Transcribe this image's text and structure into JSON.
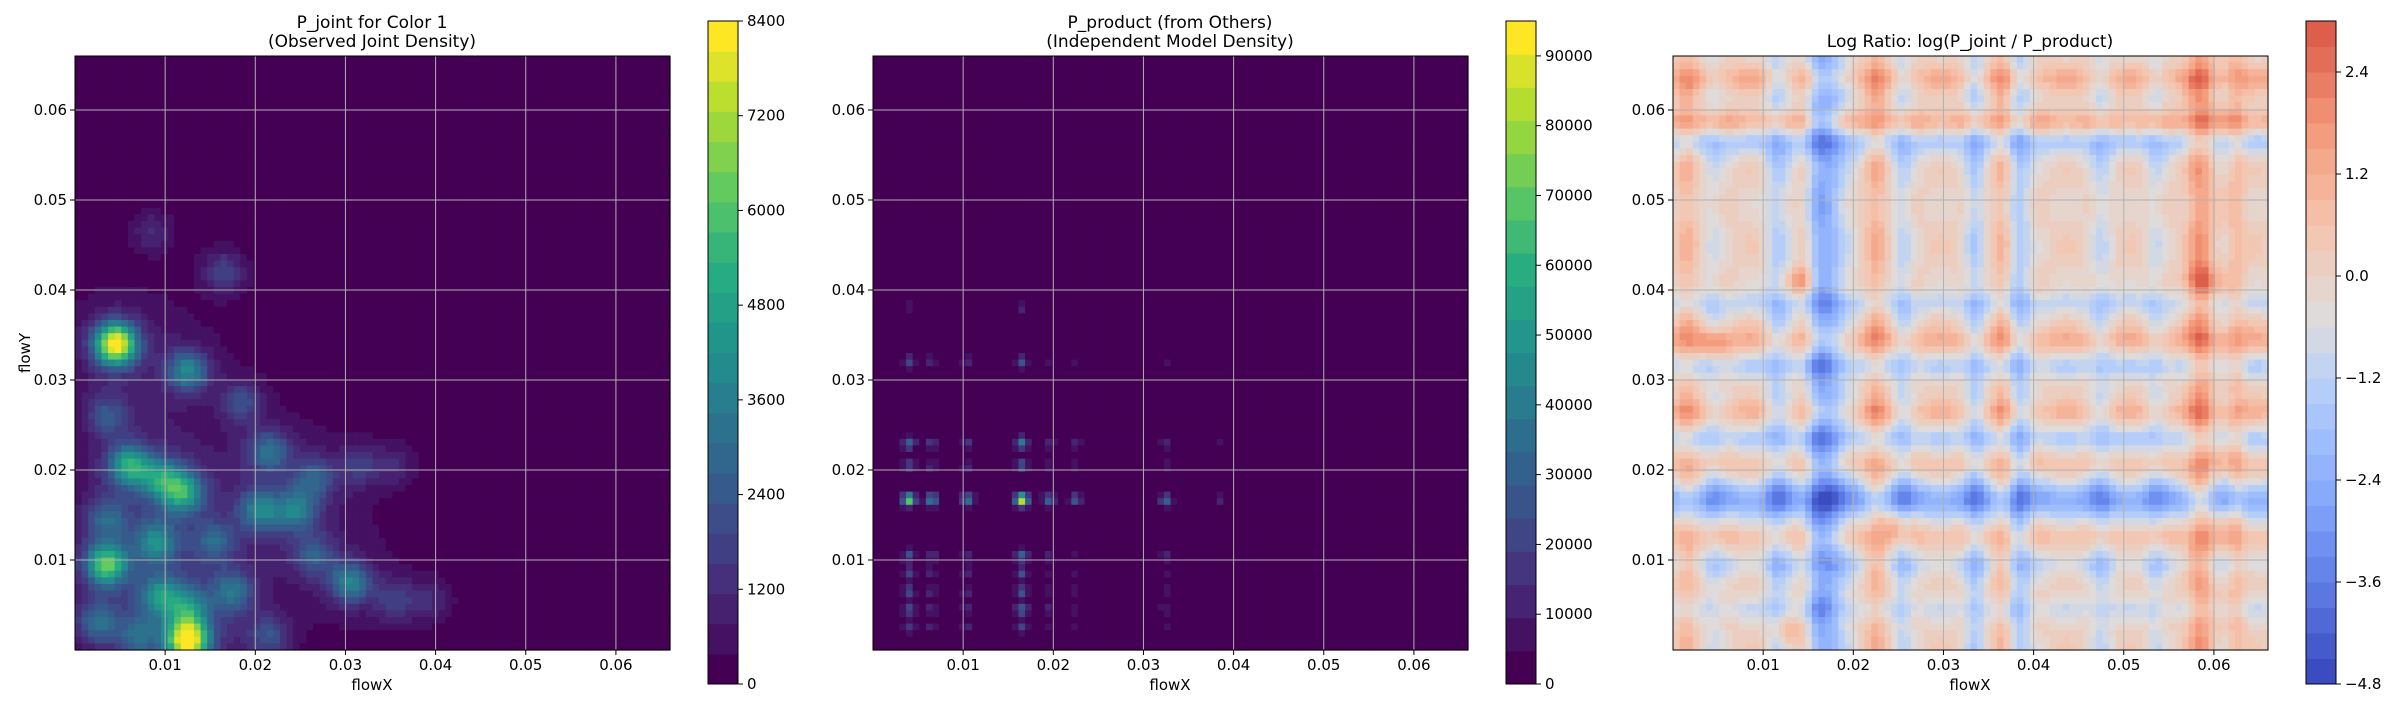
{
  "chart_data": [
    {
      "type": "heatmap",
      "title_line1": "P_joint for Color 1",
      "title_line2": "(Observed Joint Density)",
      "xlabel": "flowX",
      "ylabel": "flowY",
      "xlim": [
        0,
        0.066
      ],
      "ylim": [
        0,
        0.066
      ],
      "xticks": [
        "0.01",
        "0.02",
        "0.03",
        "0.04",
        "0.05",
        "0.06"
      ],
      "yticks": [
        "0.01",
        "0.02",
        "0.03",
        "0.04",
        "0.05",
        "0.06"
      ],
      "colormap": "viridis",
      "colorbar": {
        "min": 0,
        "max": 8400,
        "ticks": [
          "0",
          "1200",
          "2400",
          "3600",
          "4800",
          "6000",
          "7200",
          "8400"
        ]
      },
      "grid": true,
      "hotspots": [
        {
          "x": 0.0045,
          "y": 0.034,
          "value": 7800
        },
        {
          "x": 0.0125,
          "y": 0.001,
          "value": 7600
        },
        {
          "x": 0.0035,
          "y": 0.0095,
          "value": 5200
        },
        {
          "x": 0.006,
          "y": 0.0205,
          "value": 4200
        },
        {
          "x": 0.012,
          "y": 0.0175,
          "value": 4000
        },
        {
          "x": 0.0095,
          "y": 0.019,
          "value": 3200
        },
        {
          "x": 0.0125,
          "y": 0.031,
          "value": 3400
        },
        {
          "x": 0.009,
          "y": 0.012,
          "value": 3000
        },
        {
          "x": 0.0095,
          "y": 0.006,
          "value": 3000
        },
        {
          "x": 0.0205,
          "y": 0.0155,
          "value": 3000
        },
        {
          "x": 0.0245,
          "y": 0.0155,
          "value": 2800
        },
        {
          "x": 0.0125,
          "y": 0.0045,
          "value": 2800
        },
        {
          "x": 0.0215,
          "y": 0.022,
          "value": 2600
        },
        {
          "x": 0.0305,
          "y": 0.0075,
          "value": 3200
        },
        {
          "x": 0.0175,
          "y": 0.0065,
          "value": 2400
        },
        {
          "x": 0.0025,
          "y": 0.003,
          "value": 2400
        },
        {
          "x": 0.007,
          "y": 0.0015,
          "value": 2000
        },
        {
          "x": 0.0265,
          "y": 0.0105,
          "value": 2000
        },
        {
          "x": 0.0265,
          "y": 0.019,
          "value": 2000
        },
        {
          "x": 0.0165,
          "y": 0.042,
          "value": 1600
        },
        {
          "x": 0.0035,
          "y": 0.026,
          "value": 1800
        },
        {
          "x": 0.0185,
          "y": 0.0275,
          "value": 1700
        },
        {
          "x": 0.0035,
          "y": 0.0145,
          "value": 2000
        },
        {
          "x": 0.0155,
          "y": 0.012,
          "value": 2000
        },
        {
          "x": 0.0355,
          "y": 0.0055,
          "value": 1400
        },
        {
          "x": 0.0315,
          "y": 0.0205,
          "value": 1300
        },
        {
          "x": 0.0085,
          "y": 0.0465,
          "value": 1000
        },
        {
          "x": 0.0355,
          "y": 0.0205,
          "value": 900
        },
        {
          "x": 0.0395,
          "y": 0.0055,
          "value": 900
        },
        {
          "x": 0.0215,
          "y": 0.0015,
          "value": 1800
        }
      ]
    },
    {
      "type": "heatmap",
      "title_line1": "P_product (from Others)",
      "title_line2": "(Independent Model Density)",
      "xlabel": "flowX",
      "ylabel": "",
      "xlim": [
        0,
        0.066
      ],
      "ylim": [
        0,
        0.066
      ],
      "xticks": [
        "0.01",
        "0.02",
        "0.03",
        "0.04",
        "0.05",
        "0.06"
      ],
      "yticks": [
        "0.01",
        "0.02",
        "0.03",
        "0.04",
        "0.05",
        "0.06"
      ],
      "colormap": "viridis",
      "colorbar": {
        "min": 0,
        "max": 95000,
        "ticks": [
          "0",
          "10000",
          "20000",
          "30000",
          "40000",
          "50000",
          "60000",
          "70000",
          "80000",
          "90000"
        ]
      },
      "grid": true,
      "x_peaks": [
        {
          "x": 0.004,
          "w": 0.8
        },
        {
          "x": 0.0065,
          "w": 0.5
        },
        {
          "x": 0.0105,
          "w": 0.45
        },
        {
          "x": 0.0165,
          "w": 1.0
        },
        {
          "x": 0.0195,
          "w": 0.35
        },
        {
          "x": 0.0225,
          "w": 0.3
        },
        {
          "x": 0.0325,
          "w": 0.35
        },
        {
          "x": 0.0385,
          "w": 0.15
        }
      ],
      "y_peaks": [
        {
          "y": 0.0167,
          "w": 1.0
        },
        {
          "y": 0.023,
          "w": 0.45
        },
        {
          "y": 0.0205,
          "w": 0.3
        },
        {
          "y": 0.0105,
          "w": 0.35
        },
        {
          "y": 0.0085,
          "w": 0.3
        },
        {
          "y": 0.0065,
          "w": 0.3
        },
        {
          "y": 0.0045,
          "w": 0.35
        },
        {
          "y": 0.0025,
          "w": 0.25
        },
        {
          "y": 0.032,
          "w": 0.3
        },
        {
          "y": 0.038,
          "w": 0.12
        }
      ],
      "peak_value": 92000
    },
    {
      "type": "heatmap",
      "title_line1": "Log Ratio: log(P_joint / P_product)",
      "title_line2": "",
      "xlabel": "flowX",
      "ylabel": "",
      "xlim": [
        0,
        0.066
      ],
      "ylim": [
        0,
        0.066
      ],
      "xticks": [
        "0.01",
        "0.02",
        "0.03",
        "0.04",
        "0.05",
        "0.06"
      ],
      "yticks": [
        "0.01",
        "0.02",
        "0.03",
        "0.04",
        "0.05",
        "0.06"
      ],
      "colormap": "coolwarm",
      "colorbar": {
        "min": -4.8,
        "max": 3.0,
        "ticks": [
          "−4.8",
          "−3.6",
          "−2.4",
          "−1.2",
          "0.0",
          "1.2",
          "2.4"
        ]
      },
      "grid": true,
      "x_bands": [
        {
          "x": 0.0165,
          "v": -2.6,
          "w": 0.0018
        },
        {
          "x": 0.0115,
          "v": -1.2,
          "w": 0.0009
        },
        {
          "x": 0.0255,
          "v": -1.0,
          "w": 0.0008
        },
        {
          "x": 0.0335,
          "v": -1.3,
          "w": 0.0008
        },
        {
          "x": 0.0385,
          "v": -1.4,
          "w": 0.0009
        },
        {
          "x": 0.0475,
          "v": -0.9,
          "w": 0.0009
        },
        {
          "x": 0.0535,
          "v": -0.7,
          "w": 0.0008
        },
        {
          "x": 0.0045,
          "v": -0.6,
          "w": 0.0008
        },
        {
          "x": 0.0145,
          "v": 1.2,
          "w": 0.0008
        },
        {
          "x": 0.0225,
          "v": 1.0,
          "w": 0.0008
        },
        {
          "x": 0.0365,
          "v": 0.8,
          "w": 0.0007
        },
        {
          "x": 0.0585,
          "v": 1.6,
          "w": 0.001
        },
        {
          "x": 0.0625,
          "v": 0.8,
          "w": 0.0007
        },
        {
          "x": 0.0015,
          "v": 0.8,
          "w": 0.0008
        }
      ],
      "y_bands": [
        {
          "y": 0.0167,
          "v": -2.5,
          "w": 0.0014
        },
        {
          "y": 0.0565,
          "v": -1.5,
          "w": 0.0012
        },
        {
          "y": 0.0235,
          "v": -1.2,
          "w": 0.0009
        },
        {
          "y": 0.0315,
          "v": -1.1,
          "w": 0.0009
        },
        {
          "y": 0.0385,
          "v": -1.0,
          "w": 0.0009
        },
        {
          "y": 0.0095,
          "v": -0.8,
          "w": 0.0009
        },
        {
          "y": 0.0045,
          "v": -0.7,
          "w": 0.0008
        },
        {
          "y": 0.0585,
          "v": 1.4,
          "w": 0.001
        },
        {
          "y": 0.0635,
          "v": 1.0,
          "w": 0.0009
        },
        {
          "y": 0.0345,
          "v": 1.0,
          "w": 0.0009
        },
        {
          "y": 0.0265,
          "v": 0.8,
          "w": 0.0008
        },
        {
          "y": 0.0125,
          "v": 0.7,
          "w": 0.0008
        },
        {
          "y": 0.0205,
          "v": 0.6,
          "w": 0.0008
        }
      ],
      "local_extremes": [
        {
          "x": 0.0145,
          "y": 0.041,
          "v": 1.8
        },
        {
          "x": 0.0585,
          "y": 0.041,
          "v": 1.9
        },
        {
          "x": 0.0045,
          "y": 0.034,
          "v": 1.5
        },
        {
          "x": 0.0125,
          "y": 0.002,
          "v": 1.5
        },
        {
          "x": 0.0245,
          "y": 0.014,
          "v": 1.3
        }
      ]
    }
  ]
}
